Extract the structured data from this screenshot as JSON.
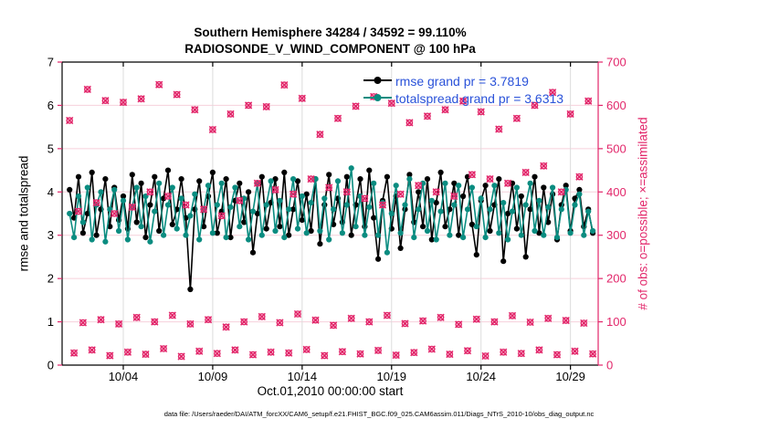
{
  "title": {
    "line1": "Southern Hemisphere 34284 / 34592 = 99.110%",
    "line2": "RADIOSONDE_V_WIND_COMPONENT @ 100 hPa"
  },
  "footer": {
    "data_file": "data file: /Users/raeder/DAI/ATM_forcXX/CAM6_setup/f.e21.FHIST_BGC.f09_025.CAM6assim.011/Diags_NTrS_2010-10/obs_diag_output.nc"
  },
  "colors": {
    "pink": "#e2266a",
    "teal": "#0a8c80",
    "black": "#000000",
    "legend_blue": "#2a52d9",
    "grid_pink": "#f6d0db",
    "grid_gray": "#dcdcdc"
  },
  "chart_data": {
    "type": "line",
    "title": "Southern Hemisphere 34284 / 34592 = 99.110%",
    "subtitle": "RADIOSONDE_V_WIND_COMPONENT @ 100 hPa",
    "possible_total": 34592,
    "assimilated_total": 34284,
    "assimilated_pct": "99.110%",
    "xlabel": "Oct.01,2010 00:00:00 start",
    "ylabel_left": "rmse and totalspread",
    "ylabel_right": "# of obs: o=possible; ×=assimilated",
    "ylim_left": [
      0,
      7
    ],
    "ylim_right": [
      0,
      700
    ],
    "grid": "on",
    "legend_position": "top-center-inside",
    "axis_days": [
      -0.42,
      29.55
    ],
    "time_step_days": 0.25,
    "yticks_left": [
      "0",
      "1",
      "2",
      "3",
      "4",
      "5",
      "6",
      "7"
    ],
    "yticks_right": [
      "0",
      "100",
      "200",
      "300",
      "400",
      "500",
      "600",
      "700"
    ],
    "xticks": {
      "days": [
        3,
        8,
        13,
        18,
        23,
        28
      ],
      "labels": [
        "10/04",
        "10/09",
        "10/14",
        "10/19",
        "10/24",
        "10/29"
      ]
    },
    "legend": [
      {
        "id": "rmse",
        "label": "rmse grand pr = 3.7819",
        "value": 3.7819,
        "color": "#000000"
      },
      {
        "id": "totalspread",
        "label": "totalspread grand pr = 3.6313",
        "value": 3.6313,
        "color": "#0a8c80"
      }
    ],
    "series": [
      {
        "id": "rmse",
        "name": "rmse",
        "color": "#000000",
        "values": [
          4.05,
          3.4,
          4.35,
          3.05,
          3.5,
          4.45,
          3.0,
          3.6,
          4.3,
          3.2,
          4.1,
          3.35,
          3.9,
          3.15,
          4.4,
          3.3,
          4.2,
          2.95,
          3.7,
          4.35,
          3.1,
          3.85,
          4.5,
          3.25,
          3.6,
          4.3,
          3.4,
          1.75,
          3.6,
          4.25,
          3.2,
          3.9,
          4.45,
          3.05,
          3.55,
          4.3,
          2.95,
          3.8,
          4.2,
          3.3,
          4.0,
          2.6,
          3.5,
          4.35,
          3.15,
          3.75,
          4.3,
          3.2,
          4.45,
          3.0,
          3.6,
          4.25,
          3.35,
          3.95,
          3.1,
          4.3,
          2.8,
          3.7,
          4.4,
          3.25,
          3.85,
          3.3,
          4.35,
          3.0,
          3.7,
          4.3,
          3.2,
          4.5,
          3.4,
          2.45,
          3.8,
          4.35,
          3.15,
          3.9,
          2.7,
          3.6,
          4.4,
          3.3,
          4.0,
          3.2,
          4.3,
          2.9,
          3.75,
          4.45,
          3.2,
          3.6,
          4.2,
          3.0,
          3.9,
          4.35,
          3.25,
          2.55,
          3.8,
          4.15,
          3.1,
          3.7,
          4.3,
          2.4,
          3.5,
          4.2,
          3.15,
          3.9,
          2.5,
          3.6,
          4.35,
          3.05,
          4.1,
          3.3,
          3.95,
          2.9,
          3.7,
          4.15,
          3.1,
          3.85,
          4.05,
          3.2,
          3.6,
          3.05
        ]
      },
      {
        "id": "totalspread",
        "name": "totalspread",
        "color": "#0a8c80",
        "values": [
          3.5,
          2.95,
          3.9,
          3.3,
          4.1,
          2.9,
          3.7,
          4.0,
          2.85,
          3.6,
          4.05,
          3.1,
          3.8,
          2.9,
          3.65,
          4.1,
          3.2,
          3.9,
          2.85,
          3.55,
          4.2,
          3.0,
          3.7,
          4.1,
          3.15,
          3.85,
          3.0,
          3.45,
          3.95,
          2.9,
          3.6,
          4.15,
          3.05,
          3.7,
          4.2,
          2.95,
          3.65,
          4.1,
          3.2,
          3.85,
          2.9,
          3.55,
          4.2,
          3.0,
          3.7,
          4.25,
          3.1,
          3.8,
          2.95,
          3.6,
          4.3,
          3.15,
          3.9,
          3.05,
          3.75,
          4.3,
          3.1,
          3.85,
          2.9,
          3.6,
          4.25,
          3.05,
          3.7,
          4.55,
          3.2,
          3.9,
          3.0,
          3.65,
          4.2,
          3.0,
          3.75,
          2.6,
          3.5,
          4.15,
          3.05,
          3.7,
          4.3,
          2.95,
          3.6,
          4.2,
          3.1,
          3.8,
          2.9,
          3.55,
          4.2,
          3.0,
          3.7,
          4.15,
          2.95,
          3.6,
          4.1,
          3.2,
          3.85,
          2.95,
          3.6,
          4.15,
          3.05,
          3.75,
          2.9,
          3.55,
          4.1,
          3.0,
          3.7,
          4.2,
          3.1,
          3.8,
          3.0,
          3.65,
          4.1,
          2.95,
          3.6,
          4.05,
          3.05,
          3.7,
          3.95,
          3.0,
          3.55,
          3.1
        ]
      }
    ],
    "obs_counts": [
      565,
      28,
      355,
      98,
      637,
      35,
      375,
      105,
      611,
      22,
      350,
      95,
      607,
      30,
      365,
      110,
      615,
      25,
      400,
      100,
      648,
      38,
      390,
      115,
      625,
      20,
      370,
      95,
      590,
      32,
      360,
      105,
      544,
      27,
      345,
      88,
      580,
      35,
      380,
      100,
      600,
      24,
      420,
      112,
      597,
      30,
      405,
      98,
      647,
      28,
      395,
      118,
      616,
      36,
      430,
      104,
      533,
      22,
      410,
      92,
      570,
      31,
      400,
      108,
      598,
      26,
      385,
      100,
      620,
      34,
      370,
      115,
      605,
      23,
      395,
      96,
      560,
      29,
      415,
      102,
      575,
      37,
      400,
      110,
      590,
      25,
      390,
      94,
      610,
      33,
      440,
      106,
      585,
      21,
      430,
      100,
      545,
      30,
      420,
      114,
      570,
      27,
      445,
      99,
      600,
      35,
      460,
      108,
      630,
      24,
      400,
      103,
      580,
      32,
      435,
      97,
      610,
      26
    ]
  }
}
